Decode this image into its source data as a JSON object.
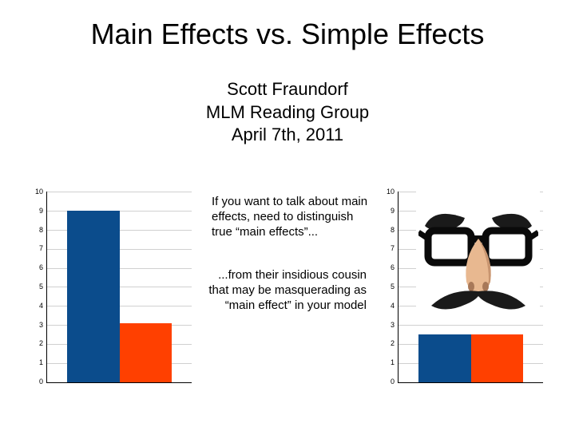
{
  "title": "Main Effects vs. Simple Effects",
  "author": "Scott Fraundorf",
  "group": "MLM Reading Group",
  "date": "April 7th, 2011",
  "middle": {
    "para1": "If you want to talk about main effects, need to distinguish true “main effects”...",
    "para2": "...from their insidious cousin that may be masquerading as “main effect” in your model"
  },
  "chart_left": {
    "type": "bar",
    "ylim": [
      0,
      10
    ],
    "ytick_step": 1,
    "yticks": [
      "0",
      "1",
      "2",
      "3",
      "4",
      "5",
      "6",
      "7",
      "8",
      "9",
      "10"
    ],
    "grid_color": "#d0d0d0",
    "axis_color": "#000000",
    "background_color": "#ffffff",
    "tick_fontsize": 9,
    "bars": [
      {
        "value": 9.0,
        "color": "#0b4c8c"
      },
      {
        "value": 3.1,
        "color": "#ff4000"
      }
    ]
  },
  "chart_right": {
    "type": "bar",
    "ylim": [
      0,
      10
    ],
    "ytick_step": 1,
    "yticks": [
      "0",
      "1",
      "2",
      "3",
      "4",
      "5",
      "6",
      "7",
      "8",
      "9",
      "10"
    ],
    "grid_color": "#d0d0d0",
    "axis_color": "#000000",
    "background_color": "#ffffff",
    "tick_fontsize": 9,
    "bars": [
      {
        "value": 2.5,
        "color": "#0b4c8c"
      },
      {
        "value": 2.5,
        "color": "#ff4000"
      }
    ],
    "overlay": "groucho-disguise"
  },
  "disguise": {
    "glasses_color": "#0a0a0a",
    "nose_color": "#e8b890",
    "nose_shadow": "#c89570",
    "brow_color": "#1a1a1a",
    "mustache_color": "#1a1a1a"
  }
}
